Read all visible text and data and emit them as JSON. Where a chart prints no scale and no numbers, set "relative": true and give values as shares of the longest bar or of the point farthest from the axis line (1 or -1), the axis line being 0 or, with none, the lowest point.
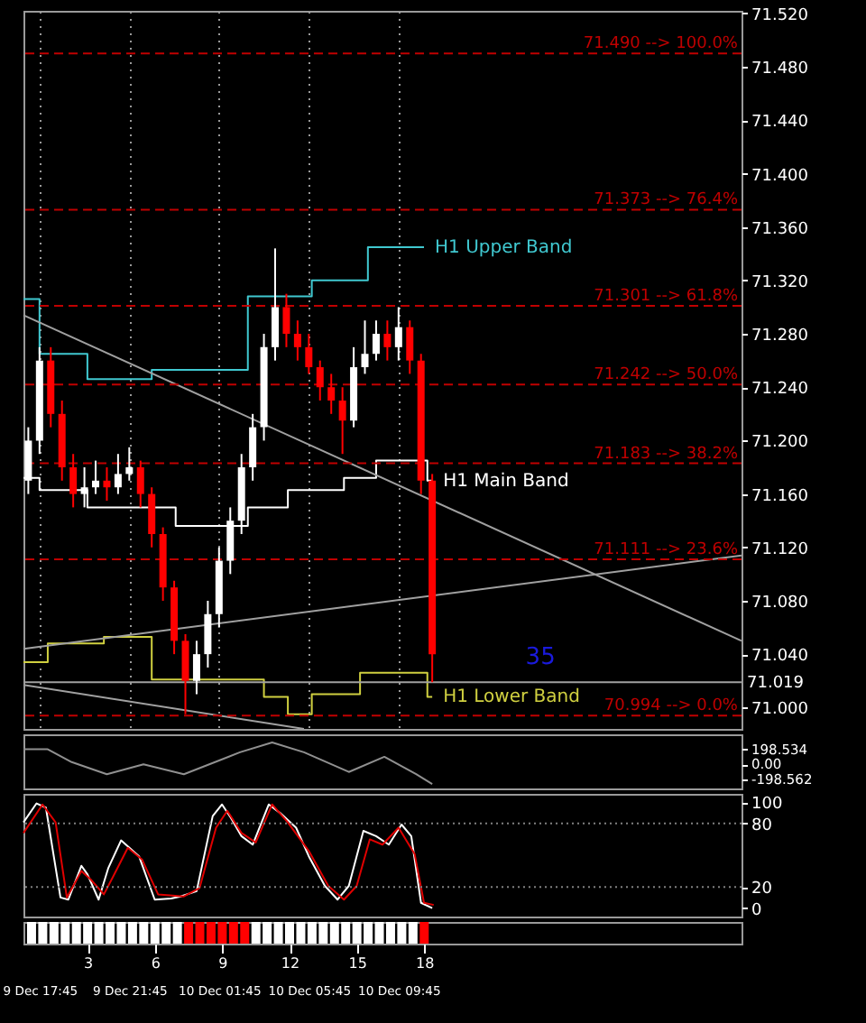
{
  "chart_data": [
    {
      "type": "candlestick",
      "xlim": [
        "--12-09T17:02",
        "--12-11T01:02"
      ],
      "ylim": [
        70.984,
        71.522
      ],
      "xticks": [
        {
          "value": "--12-09T17:45",
          "label": "9 Dec 17:45"
        },
        {
          "value": "--12-09T21:45",
          "label": "9 Dec 21:45"
        },
        {
          "value": "--12-10T01:45",
          "label": "10 Dec 01:45"
        },
        {
          "value": "--12-10T05:45",
          "label": "10 Dec 05:45"
        },
        {
          "value": "--12-10T09:45",
          "label": "10 Dec 09:45"
        }
      ],
      "yticks": [
        {
          "value": 71.0,
          "label": "71.000"
        },
        {
          "value": 71.04,
          "label": "71.040"
        },
        {
          "value": 71.08,
          "label": "71.080"
        },
        {
          "value": 71.12,
          "label": "71.120"
        },
        {
          "value": 71.16,
          "label": "71.160"
        },
        {
          "value": 71.2,
          "label": "71.200"
        },
        {
          "value": 71.24,
          "label": "71.240"
        },
        {
          "value": 71.28,
          "label": "71.280"
        },
        {
          "value": 71.32,
          "label": "71.320"
        },
        {
          "value": 71.36,
          "label": "71.360"
        },
        {
          "value": 71.4,
          "label": "71.400"
        },
        {
          "value": 71.44,
          "label": "71.440"
        },
        {
          "value": 71.48,
          "label": "71.480"
        },
        {
          "value": 71.52,
          "label": "71.520"
        }
      ],
      "tick_labels": "y",
      "grid": "x",
      "x": [
        "--12-09T17:15",
        "--12-09T17:45",
        "--12-09T18:15",
        "--12-09T18:45",
        "--12-09T19:15",
        "--12-09T19:45",
        "--12-09T20:15",
        "--12-09T20:45",
        "--12-09T21:15",
        "--12-09T21:45",
        "--12-09T22:15",
        "--12-09T22:45",
        "--12-09T23:15",
        "--12-09T23:45",
        "--12-10T00:15",
        "--12-10T00:45",
        "--12-10T01:15",
        "--12-10T01:45",
        "--12-10T02:15",
        "--12-10T02:45",
        "--12-10T03:15",
        "--12-10T03:45",
        "--12-10T04:15",
        "--12-10T04:45",
        "--12-10T05:15",
        "--12-10T05:45",
        "--12-10T06:15",
        "--12-10T06:45",
        "--12-10T07:15",
        "--12-10T07:45",
        "--12-10T08:15",
        "--12-10T08:45",
        "--12-10T09:15",
        "--12-10T09:45",
        "--12-10T10:15",
        "--12-10T10:45",
        "--12-10T11:15"
      ],
      "ohlc": [
        [
          71.17,
          71.21,
          71.16,
          71.2
        ],
        [
          71.2,
          71.27,
          71.19,
          71.26
        ],
        [
          71.26,
          71.27,
          71.21,
          71.22
        ],
        [
          71.22,
          71.23,
          71.17,
          71.18
        ],
        [
          71.18,
          71.19,
          71.15,
          71.16
        ],
        [
          71.16,
          71.18,
          71.15,
          71.165
        ],
        [
          71.165,
          71.185,
          71.16,
          71.17
        ],
        [
          71.17,
          71.18,
          71.155,
          71.165
        ],
        [
          71.165,
          71.19,
          71.16,
          71.175
        ],
        [
          71.175,
          71.195,
          71.17,
          71.18
        ],
        [
          71.18,
          71.185,
          71.15,
          71.16
        ],
        [
          71.16,
          71.165,
          71.12,
          71.13
        ],
        [
          71.13,
          71.135,
          71.08,
          71.09
        ],
        [
          71.09,
          71.095,
          71.04,
          71.05
        ],
        [
          71.05,
          71.055,
          70.995,
          71.02
        ],
        [
          71.02,
          71.05,
          71.01,
          71.04
        ],
        [
          71.04,
          71.08,
          71.03,
          71.07
        ],
        [
          71.07,
          71.12,
          71.06,
          71.11
        ],
        [
          71.11,
          71.15,
          71.1,
          71.14
        ],
        [
          71.14,
          71.19,
          71.13,
          71.18
        ],
        [
          71.18,
          71.22,
          71.17,
          71.21
        ],
        [
          71.21,
          71.28,
          71.2,
          71.27
        ],
        [
          71.27,
          71.344,
          71.26,
          71.3
        ],
        [
          71.3,
          71.31,
          71.27,
          71.28
        ],
        [
          71.28,
          71.29,
          71.26,
          71.27
        ],
        [
          71.27,
          71.28,
          71.25,
          71.255
        ],
        [
          71.255,
          71.26,
          71.23,
          71.24
        ],
        [
          71.24,
          71.25,
          71.22,
          71.23
        ],
        [
          71.23,
          71.24,
          71.19,
          71.215
        ],
        [
          71.215,
          71.27,
          71.21,
          71.255
        ],
        [
          71.255,
          71.29,
          71.25,
          71.265
        ],
        [
          71.265,
          71.29,
          71.26,
          71.28
        ],
        [
          71.28,
          71.29,
          71.26,
          71.27
        ],
        [
          71.27,
          71.3,
          71.26,
          71.285
        ],
        [
          71.285,
          71.29,
          71.25,
          71.26
        ],
        [
          71.26,
          71.265,
          71.16,
          71.17
        ],
        [
          71.17,
          71.175,
          71.019,
          71.04
        ]
      ],
      "colors": [
        "#ffffff",
        "#ffffff",
        "#ff0000",
        "#ff0000",
        "#ff0000",
        "#ffffff",
        "#ffffff",
        "#ff0000",
        "#ffffff",
        "#ffffff",
        "#ff0000",
        "#ff0000",
        "#ff0000",
        "#ff0000",
        "#ff0000",
        "#ffffff",
        "#ffffff",
        "#ffffff",
        "#ffffff",
        "#ffffff",
        "#ffffff",
        "#ffffff",
        "#ffffff",
        "#ff0000",
        "#ff0000",
        "#ff0000",
        "#ff0000",
        "#ff0000",
        "#ff0000",
        "#ffffff",
        "#ffffff",
        "#ffffff",
        "#ff0000",
        "#ffffff",
        "#ff0000",
        "#ff0000",
        "#ff0000"
      ],
      "series": [
        {
          "name": "H1 Upper Band",
          "type": "step",
          "color": "#40c8d0",
          "x": [
            "--12-09T17:02",
            "--12-09T17:45",
            "--12-09T19:53",
            "--12-09T22:45",
            "--12-10T03:02",
            "--12-10T05:53",
            "--12-10T08:23",
            "--12-10T10:53"
          ],
          "values": [
            71.306,
            71.265,
            71.246,
            71.253,
            71.308,
            71.32,
            71.345,
            71.345
          ]
        },
        {
          "name": "H1 Main Band",
          "type": "step",
          "color": "#ffffff",
          "x": [
            "--12-09T17:02",
            "--12-09T17:45",
            "--12-09T19:53",
            "--12-09T23:49",
            "--12-10T03:02",
            "--12-10T04:49",
            "--12-10T07:19",
            "--12-10T08:45",
            "--12-10T11:02",
            "--12-10T11:15"
          ],
          "values": [
            71.172,
            71.163,
            71.15,
            71.136,
            71.15,
            71.163,
            71.172,
            71.185,
            71.17,
            71.17
          ]
        },
        {
          "name": "H1 Lower Band",
          "type": "step",
          "color": "#d0d040",
          "x": [
            "--12-09T17:02",
            "--12-09T18:07",
            "--12-09T20:37",
            "--12-09T22:45",
            "--12-10T03:45",
            "--12-10T04:49",
            "--12-10T05:53",
            "--12-10T08:02",
            "--12-10T11:02",
            "--12-10T11:15"
          ],
          "values": [
            71.034,
            71.048,
            71.053,
            71.021,
            71.008,
            70.995,
            71.01,
            71.026,
            71.008,
            71.008
          ]
        },
        {
          "type": "line",
          "color": "#a0a0a0",
          "x": [
            "--12-09T17:02",
            "--12-11T01:02"
          ],
          "values": [
            71.294,
            71.05
          ]
        },
        {
          "type": "line",
          "color": "#a0a0a0",
          "x": [
            "--12-09T17:02",
            "--12-11T01:02"
          ],
          "values": [
            71.044,
            71.114
          ]
        },
        {
          "type": "line",
          "color": "#a0a0a0",
          "x": [
            "--12-09T17:02",
            "--12-10T05:32"
          ],
          "values": [
            71.017,
            70.984
          ]
        }
      ],
      "ref_lines": [
        {
          "axis": "y",
          "value": 71.49,
          "label": "71.490 --> 100.0%",
          "color": "#c00000",
          "line_style": "dashed"
        },
        {
          "axis": "y",
          "value": 71.373,
          "label": "71.373 --> 76.4%",
          "color": "#c00000",
          "line_style": "dashed"
        },
        {
          "axis": "y",
          "value": 71.301,
          "label": "71.301 --> 61.8%",
          "color": "#c00000",
          "line_style": "dashed"
        },
        {
          "axis": "y",
          "value": 71.242,
          "label": "71.242 --> 50.0%",
          "color": "#c00000",
          "line_style": "dashed"
        },
        {
          "axis": "y",
          "value": 71.183,
          "label": "71.183 --> 38.2%",
          "color": "#c00000",
          "line_style": "dashed"
        },
        {
          "axis": "y",
          "value": 71.111,
          "label": "71.111 --> 23.6%",
          "color": "#c00000",
          "line_style": "dashed"
        },
        {
          "axis": "y",
          "value": 70.994,
          "label": "70.994 --> 0.0%",
          "color": "#c00000",
          "line_style": "dashed"
        },
        {
          "axis": "y",
          "value": 71.019,
          "label": "71.019",
          "color": "#a0a0a0",
          "line_style": "solid"
        }
      ],
      "annotations": [
        "35"
      ]
    },
    {
      "type": "line",
      "xlim": [
        "--12-09T17:02",
        "--12-11T01:02"
      ],
      "ylim": [
        -318,
        397
      ],
      "yticks": [
        {
          "value": 198.534,
          "label": "198.534"
        },
        {
          "value": 0,
          "label": "0.00"
        },
        {
          "value": -198.562,
          "label": "-198.562"
        }
      ],
      "tick_labels": "y",
      "series": [
        {
          "color": "#909090",
          "x": [
            "--12-09T17:02",
            "--12-09T18:07",
            "--12-09T19:11",
            "--12-09T20:45",
            "--12-09T22:23",
            "--12-10T00:11",
            "--12-10T02:41",
            "--12-10T04:07",
            "--12-10T05:32",
            "--12-10T07:32",
            "--12-10T09:07",
            "--12-10T10:32",
            "--12-10T11:15"
          ],
          "values": [
            200,
            200,
            30,
            -130,
            0,
            -130,
            160,
            290,
            160,
            -100,
            100,
            -130,
            -260
          ]
        }
      ]
    },
    {
      "type": "line",
      "xlim": [
        "--12-09T17:02",
        "--12-11T01:02"
      ],
      "ylim": [
        -8,
        108
      ],
      "xticks": [
        {
          "value": "--12-09T17:45",
          "label": "9 Dec 17:45"
        },
        {
          "value": "--12-09T21:45",
          "label": "9 Dec 21:45"
        },
        {
          "value": "--12-10T01:45",
          "label": "10 Dec 01:45"
        },
        {
          "value": "--12-10T05:45",
          "label": "10 Dec 05:45"
        },
        {
          "value": "--12-10T09:45",
          "label": "10 Dec 09:45"
        }
      ],
      "yticks": [
        0,
        20,
        80,
        100
      ],
      "ref_lines": [
        {
          "axis": "y",
          "value": 80,
          "color": "#808080",
          "line_style": "dotted"
        },
        {
          "axis": "y",
          "value": 20,
          "color": "#808080",
          "line_style": "dotted"
        }
      ],
      "series": [
        {
          "color": "#ffffff",
          "x": [
            "--12-09T17:02",
            "--12-09T17:37",
            "--12-09T18:02",
            "--12-09T18:41",
            "--12-09T19:02",
            "--12-09T19:37",
            "--12-09T19:53",
            "--12-09T20:23",
            "--12-09T20:49",
            "--12-09T21:23",
            "--12-09T22:11",
            "--12-09T22:53",
            "--12-09T23:37",
            "--12-10T00:02",
            "--12-10T00:45",
            "--12-10T01:28",
            "--12-10T01:53",
            "--12-10T02:19",
            "--12-10T02:45",
            "--12-10T03:15",
            "--12-10T03:58",
            "--12-10T04:28",
            "--12-10T05:11",
            "--12-10T05:45",
            "--12-10T06:28",
            "--12-10T07:02",
            "--12-10T07:32",
            "--12-10T08:11",
            "--12-10T08:45",
            "--12-10T09:19",
            "--12-10T09:53",
            "--12-10T10:19",
            "--12-10T10:45",
            "--12-10T11:15"
          ],
          "values": [
            81,
            99,
            95,
            10,
            8,
            40,
            32,
            8,
            38,
            64,
            49,
            8,
            9,
            11,
            16,
            87,
            98,
            84,
            68,
            60,
            98,
            90,
            76,
            49,
            21,
            8,
            21,
            73,
            68,
            60,
            79,
            68,
            5,
            0
          ]
        },
        {
          "color": "#e00000",
          "x": [
            "--12-09T17:02",
            "--12-09T17:53",
            "--12-09T18:28",
            "--12-09T18:58",
            "--12-09T19:37",
            "--12-09T20:02",
            "--12-09T20:37",
            "--12-09T21:02",
            "--12-09T21:41",
            "--12-09T22:19",
            "--12-09T23:02",
            "--12-10T00:11",
            "--12-10T00:53",
            "--12-10T01:37",
            "--12-10T02:07",
            "--12-10T02:45",
            "--12-10T03:23",
            "--12-10T04:07",
            "--12-10T04:49",
            "--12-10T05:45",
            "--12-10T06:37",
            "--12-10T07:19",
            "--12-10T07:53",
            "--12-10T08:28",
            "--12-10T09:02",
            "--12-10T09:45",
            "--12-10T10:28",
            "--12-10T10:53",
            "--12-10T11:19"
          ],
          "values": [
            71,
            98,
            81,
            10,
            35,
            27,
            13,
            30,
            57,
            46,
            13,
            11,
            19,
            76,
            92,
            71,
            62,
            98,
            81,
            54,
            21,
            8,
            21,
            65,
            60,
            76,
            51,
            5,
            3
          ]
        }
      ]
    },
    {
      "type": "bar",
      "relative": true,
      "xlim": [
        0.14,
        32.14
      ],
      "xticks": [
        3,
        6,
        9,
        12,
        15,
        18
      ],
      "tick_labels": "x",
      "x": [
        0.5,
        1,
        1.5,
        2,
        2.5,
        3,
        3.5,
        4,
        4.5,
        5,
        5.5,
        6,
        6.5,
        7,
        7.5,
        8,
        8.5,
        9,
        9.5,
        10,
        10.5,
        11,
        11.5,
        12,
        12.5,
        13,
        13.5,
        14,
        14.5,
        15,
        15.5,
        16,
        16.5,
        17,
        17.5,
        18
      ],
      "values": [
        1,
        1,
        1,
        1,
        1,
        1,
        1,
        1,
        1,
        1,
        1,
        1,
        1,
        1,
        1,
        1,
        1,
        1,
        1,
        1,
        1,
        1,
        1,
        1,
        1,
        1,
        1,
        1,
        1,
        1,
        1,
        1,
        1,
        1,
        1,
        1
      ],
      "colors": [
        "#ffffff",
        "#ffffff",
        "#ffffff",
        "#ffffff",
        "#ffffff",
        "#ffffff",
        "#ffffff",
        "#ffffff",
        "#ffffff",
        "#ffffff",
        "#ffffff",
        "#ffffff",
        "#ffffff",
        "#ffffff",
        "#ff0000",
        "#ff0000",
        "#ff0000",
        "#ff0000",
        "#ff0000",
        "#ff0000",
        "#ffffff",
        "#ffffff",
        "#ffffff",
        "#ffffff",
        "#ffffff",
        "#ffffff",
        "#ffffff",
        "#ffffff",
        "#ffffff",
        "#ffffff",
        "#ffffff",
        "#ffffff",
        "#ffffff",
        "#ffffff",
        "#ffffff",
        "#ff0000"
      ]
    }
  ]
}
